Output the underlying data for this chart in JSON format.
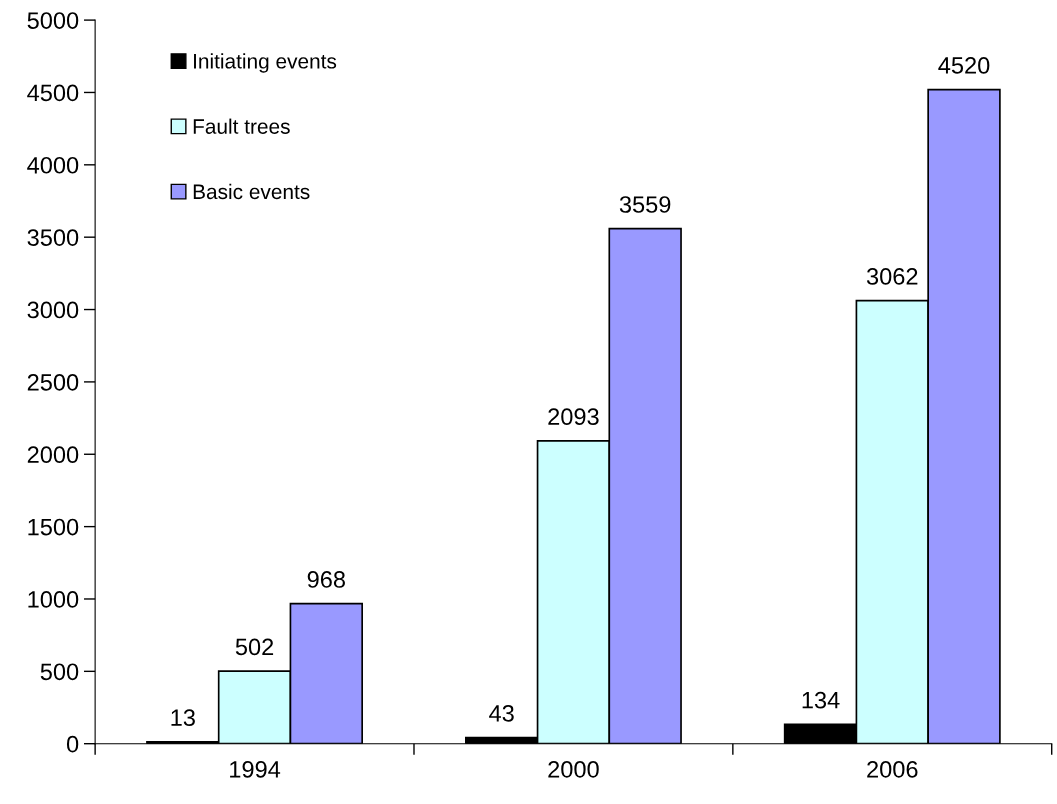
{
  "chart_data": {
    "type": "bar",
    "categories": [
      "1994",
      "2000",
      "2006"
    ],
    "series": [
      {
        "name": "Initiating events",
        "color": "#000000",
        "values": [
          13,
          43,
          134
        ]
      },
      {
        "name": "Fault trees",
        "color": "#ccffff",
        "values": [
          502,
          2093,
          3062
        ]
      },
      {
        "name": "Basic events",
        "color": "#9999ff",
        "values": [
          968,
          3559,
          4520
        ]
      }
    ],
    "ylim": [
      0,
      5000
    ],
    "yticks": [
      0,
      500,
      1000,
      1500,
      2000,
      2500,
      3000,
      3500,
      4000,
      4500,
      5000
    ],
    "data_labels": true,
    "legend": "top left",
    "grid": false
  }
}
